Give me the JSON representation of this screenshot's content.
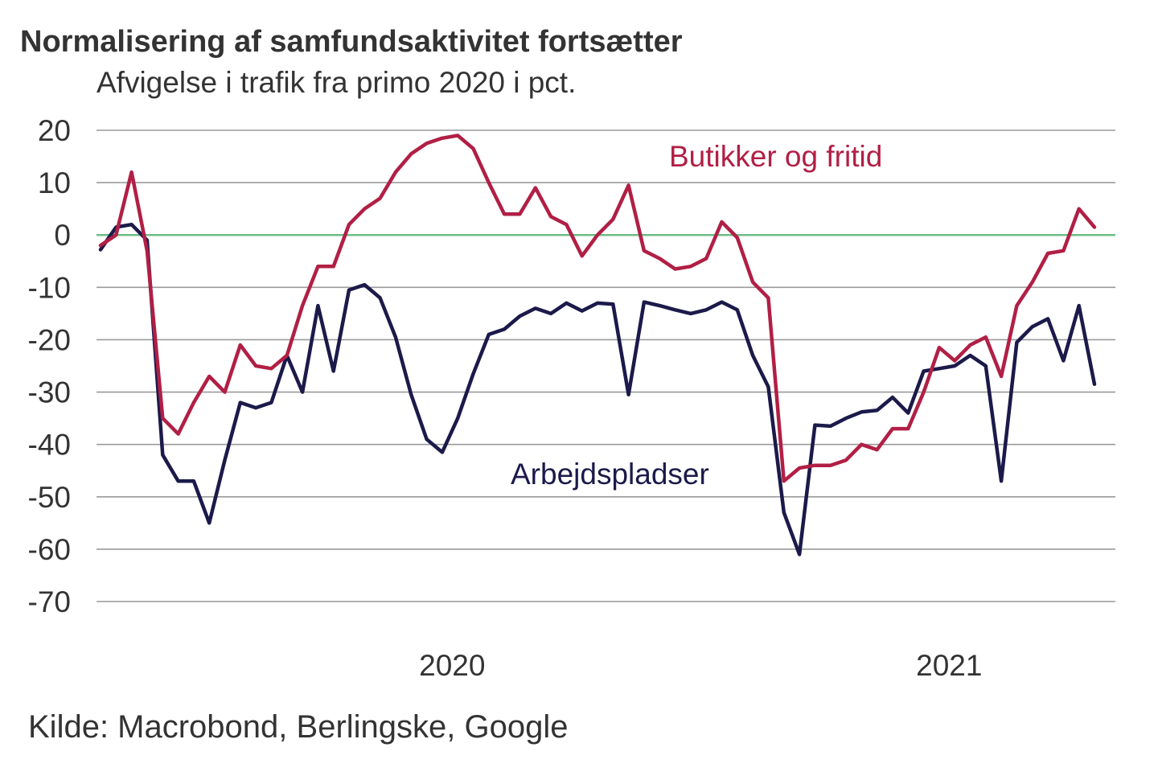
{
  "chart_data": {
    "type": "line",
    "title": "Normalisering af samfundsaktivitet fortsætter",
    "subtitle": "Afvigelse i trafik fra primo 2020 i pct.",
    "source": "Kilde: Macrobond, Berlingske, Google",
    "ylim": [
      -70,
      20
    ],
    "yticks": [
      "20",
      "10",
      "0",
      "-10",
      "-20",
      "-30",
      "-40",
      "-50",
      "-60",
      "-70"
    ],
    "ytick_values": [
      20,
      10,
      0,
      -10,
      -20,
      -30,
      -40,
      -50,
      -60,
      -70
    ],
    "xlim": [
      "2020-02-19",
      "2021-05-12"
    ],
    "xticks": [
      {
        "label": "2020",
        "start": "2020-02-19",
        "end": "2021-01-01"
      },
      {
        "label": "2021",
        "start": "2021-01-01",
        "end": "2021-05-12"
      }
    ],
    "grid": true,
    "zero_line_color": "#6dbd86",
    "x": [
      "2020-02-19",
      "2020-02-26",
      "2020-03-04",
      "2020-03-11",
      "2020-03-18",
      "2020-03-25",
      "2020-04-01",
      "2020-04-08",
      "2020-04-15",
      "2020-04-22",
      "2020-04-29",
      "2020-05-06",
      "2020-05-13",
      "2020-05-20",
      "2020-05-27",
      "2020-06-03",
      "2020-06-10",
      "2020-06-17",
      "2020-06-24",
      "2020-07-01",
      "2020-07-08",
      "2020-07-15",
      "2020-07-22",
      "2020-07-29",
      "2020-08-05",
      "2020-08-12",
      "2020-08-19",
      "2020-08-26",
      "2020-09-02",
      "2020-09-09",
      "2020-09-16",
      "2020-09-23",
      "2020-09-30",
      "2020-10-07",
      "2020-10-14",
      "2020-10-21",
      "2020-10-28",
      "2020-11-04",
      "2020-11-11",
      "2020-11-18",
      "2020-11-25",
      "2020-12-02",
      "2020-12-09",
      "2020-12-16",
      "2020-12-23",
      "2020-12-30",
      "2021-01-06",
      "2021-01-13",
      "2021-01-20",
      "2021-01-27",
      "2021-02-03",
      "2021-02-10",
      "2021-02-17",
      "2021-02-24",
      "2021-03-03",
      "2021-03-10",
      "2021-03-17",
      "2021-03-24",
      "2021-03-31",
      "2021-04-07",
      "2021-04-14",
      "2021-04-21",
      "2021-04-28",
      "2021-05-05",
      "2021-05-12"
    ],
    "series": [
      {
        "name": "Butikker og fritid",
        "color": "#b11f45",
        "values": [
          -2,
          0,
          12,
          -3,
          -35,
          -38,
          -32,
          -27,
          -30,
          -21,
          -25,
          -25.5,
          -23,
          -13.5,
          -6,
          -6,
          2,
          5,
          7,
          12,
          15.5,
          17.5,
          18.5,
          19,
          16.5,
          10,
          4,
          4,
          9,
          3.5,
          2,
          -4,
          0,
          3,
          9.5,
          -3,
          -4.5,
          -6.5,
          -6,
          -4.5,
          2.5,
          -0.5,
          -9,
          -12,
          -47,
          -44.5,
          -44,
          -44,
          -43,
          -40,
          -41,
          -37,
          -37,
          -30,
          -21.5,
          -24,
          -21,
          -19.5,
          -27,
          -13.5,
          -9,
          -3.5,
          -3,
          5,
          1.5
        ]
      },
      {
        "name": "Arbejdspladser",
        "color": "#1b1a4a",
        "values": [
          -2.8,
          1.5,
          2,
          -1,
          -42,
          -47,
          -47,
          -55,
          -43,
          -32,
          -33,
          -32,
          -23,
          -30,
          -13.5,
          -26,
          -10.5,
          -9.5,
          -12,
          -19.5,
          -30.5,
          -39,
          -41.5,
          -35,
          -26.5,
          -19,
          -18,
          -15.5,
          -14,
          -15,
          -13,
          -14.5,
          -13,
          -13.2,
          -30.5,
          -12.8,
          -13.5,
          -14.3,
          -15,
          -14.3,
          -12.8,
          -14.3,
          -23,
          -29,
          -53,
          -61,
          -36.3,
          -36.5,
          -35,
          -33.8,
          -33.5,
          -31,
          -34,
          -26,
          -25.5,
          -25,
          -23,
          -25,
          -47,
          -20.5,
          -17.5,
          -16,
          -24,
          -13.5,
          -28.5
        ]
      }
    ]
  }
}
